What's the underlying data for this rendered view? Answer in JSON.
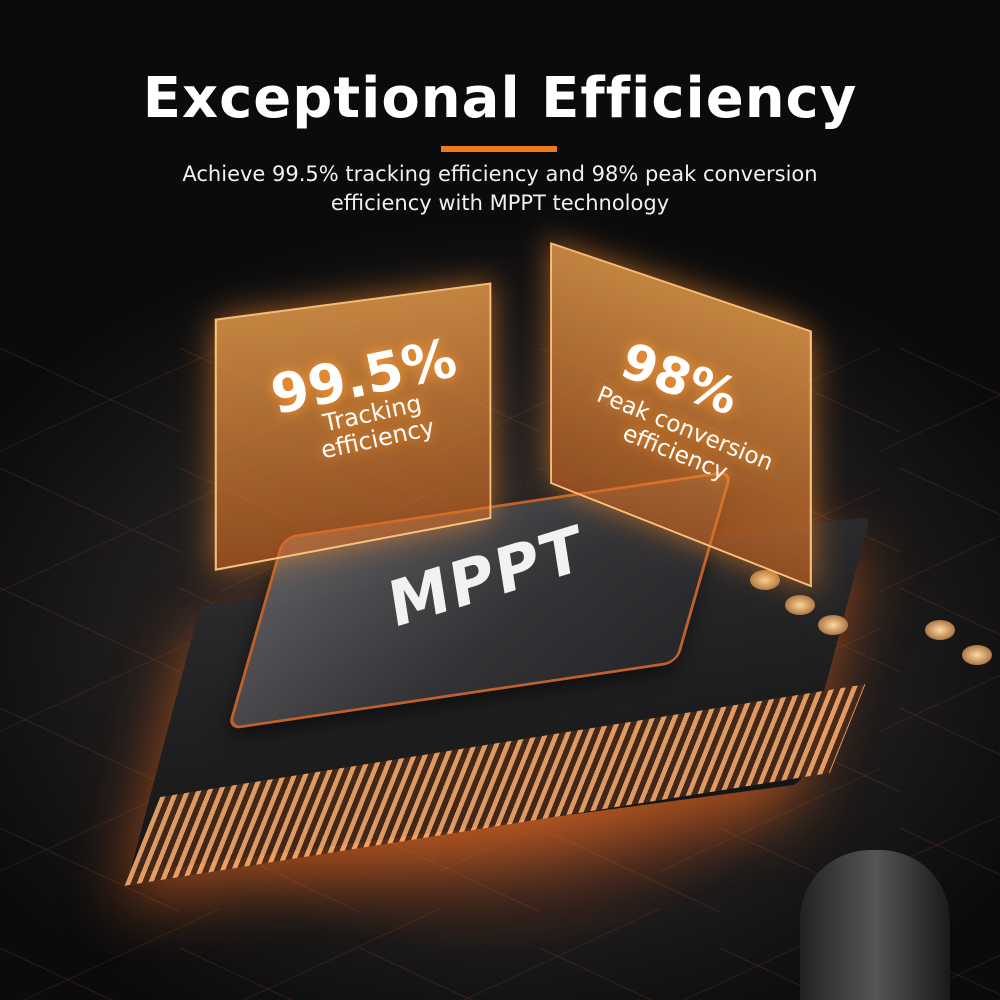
{
  "header": {
    "title": "Exceptional Efficiency",
    "subtitle": "Achieve 99.5% tracking efficiency and 98% peak conversion efficiency with MPPT technology",
    "accent_color": "#f07a1e"
  },
  "chip": {
    "label": "MPPT"
  },
  "panels": [
    {
      "value": "99.5%",
      "label": "Tracking efficiency"
    },
    {
      "value": "98%",
      "label": "Peak conversion efficiency"
    }
  ]
}
